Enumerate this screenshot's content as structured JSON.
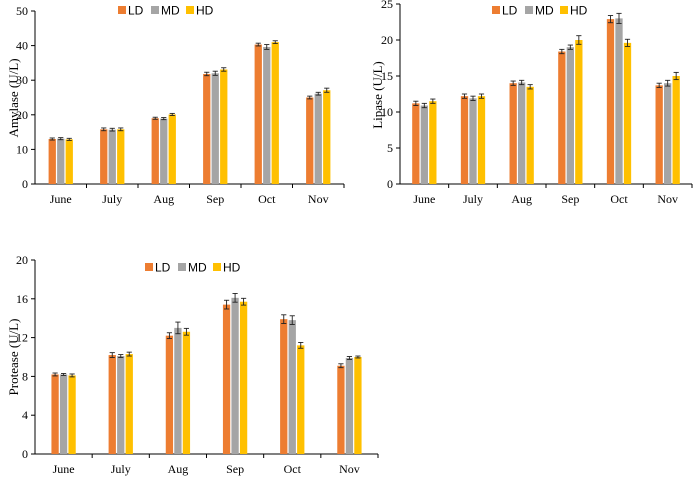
{
  "colors": {
    "LD": "#ED7D31",
    "MD": "#A5A5A5",
    "HD": "#FFC000"
  },
  "chart_data": [
    {
      "type": "bar",
      "ylabel": "Amylase (U/L)",
      "ylim": [
        0,
        50
      ],
      "yticks": [
        0,
        10,
        20,
        30,
        40,
        50
      ],
      "categories": [
        "June",
        "July",
        "Aug",
        "Sep",
        "Oct",
        "Nov"
      ],
      "legend": [
        "LD",
        "MD",
        "HD"
      ],
      "series": [
        {
          "name": "LD",
          "values": [
            13.0,
            15.8,
            19.0,
            31.8,
            40.3,
            25.0
          ],
          "errors": [
            0.3,
            0.4,
            0.3,
            0.5,
            0.4,
            0.4
          ]
        },
        {
          "name": "MD",
          "values": [
            13.1,
            15.7,
            18.9,
            32.0,
            39.6,
            26.1
          ],
          "errors": [
            0.3,
            0.4,
            0.3,
            0.6,
            0.7,
            0.4
          ]
        },
        {
          "name": "HD",
          "values": [
            12.9,
            15.8,
            20.1,
            33.1,
            41.0,
            27.1
          ],
          "errors": [
            0.3,
            0.4,
            0.3,
            0.5,
            0.4,
            0.6
          ]
        }
      ]
    },
    {
      "type": "bar",
      "ylabel": "Lipase (U/L)",
      "ylim": [
        0,
        25
      ],
      "yticks": [
        0,
        5,
        10,
        15,
        20,
        25
      ],
      "categories": [
        "June",
        "July",
        "Aug",
        "Sep",
        "Oct",
        "Nov"
      ],
      "legend": [
        "LD",
        "MD",
        "HD"
      ],
      "series": [
        {
          "name": "LD",
          "values": [
            11.2,
            12.2,
            14.0,
            18.4,
            22.9,
            13.7
          ],
          "errors": [
            0.3,
            0.3,
            0.3,
            0.3,
            0.5,
            0.3
          ]
        },
        {
          "name": "MD",
          "values": [
            10.9,
            11.9,
            14.1,
            19.0,
            23.0,
            14.0
          ],
          "errors": [
            0.3,
            0.3,
            0.3,
            0.3,
            0.7,
            0.4
          ]
        },
        {
          "name": "HD",
          "values": [
            11.5,
            12.2,
            13.5,
            20.0,
            19.6,
            15.0
          ],
          "errors": [
            0.3,
            0.3,
            0.3,
            0.6,
            0.5,
            0.5
          ]
        }
      ]
    },
    {
      "type": "bar",
      "ylabel": "Protease (U/L)",
      "ylim": [
        0,
        20
      ],
      "yticks": [
        0,
        4,
        8,
        12,
        16,
        20
      ],
      "categories": [
        "June",
        "July",
        "Aug",
        "Sep",
        "Oct",
        "Nov"
      ],
      "legend": [
        "LD",
        "MD",
        "HD"
      ],
      "series": [
        {
          "name": "LD",
          "values": [
            8.2,
            10.2,
            12.2,
            15.4,
            13.9,
            9.1
          ],
          "errors": [
            0.15,
            0.25,
            0.3,
            0.45,
            0.45,
            0.2
          ]
        },
        {
          "name": "MD",
          "values": [
            8.2,
            10.1,
            13.0,
            16.1,
            13.8,
            9.9
          ],
          "errors": [
            0.1,
            0.15,
            0.6,
            0.45,
            0.45,
            0.15
          ]
        },
        {
          "name": "HD",
          "values": [
            8.1,
            10.3,
            12.6,
            15.7,
            11.2,
            10.0
          ],
          "errors": [
            0.15,
            0.2,
            0.35,
            0.35,
            0.3,
            0.1
          ]
        }
      ]
    }
  ]
}
